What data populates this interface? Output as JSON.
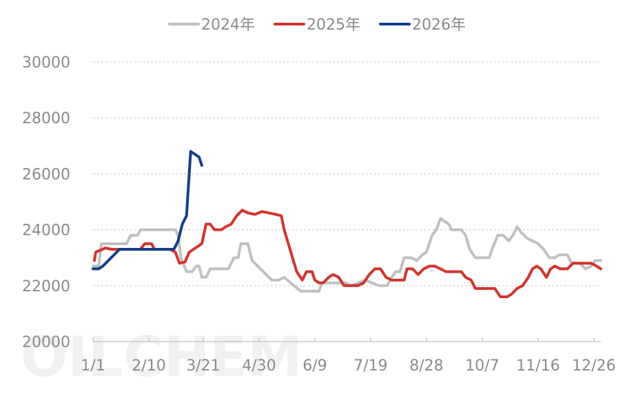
{
  "chart_data": {
    "type": "line",
    "watermark": "OILCHEM",
    "legend_position": "top-center",
    "grid": "horizontal-dashed",
    "ylim": [
      20000,
      30000
    ],
    "yticks": [
      "20000",
      "22000",
      "24000",
      "26000",
      "28000",
      "30000"
    ],
    "xticks": [
      "1/1",
      "2/10",
      "3/21",
      "4/30",
      "6/9",
      "7/19",
      "8/28",
      "10/7",
      "11/16",
      "12/26"
    ],
    "x_domain": [
      "1/1",
      "12/31"
    ],
    "series": [
      {
        "name": "2024年",
        "color": "#c0c0c0",
        "points": [
          [
            "1/1",
            22700
          ],
          [
            "1/5",
            22700
          ],
          [
            "1/7",
            23500
          ],
          [
            "1/15",
            23500
          ],
          [
            "1/25",
            23500
          ],
          [
            "1/28",
            23800
          ],
          [
            "2/2",
            23800
          ],
          [
            "2/4",
            24000
          ],
          [
            "2/20",
            24000
          ],
          [
            "3/1",
            24000
          ],
          [
            "3/3",
            23800
          ],
          [
            "3/5",
            23000
          ],
          [
            "3/9",
            22500
          ],
          [
            "3/13",
            22500
          ],
          [
            "3/16",
            22700
          ],
          [
            "3/18",
            22700
          ],
          [
            "3/20",
            22300
          ],
          [
            "3/23",
            22300
          ],
          [
            "3/26",
            22600
          ],
          [
            "3/31",
            22600
          ],
          [
            "4/8",
            22600
          ],
          [
            "4/12",
            23000
          ],
          [
            "4/15",
            23000
          ],
          [
            "4/17",
            23500
          ],
          [
            "4/22",
            23500
          ],
          [
            "4/25",
            22900
          ],
          [
            "4/29",
            22700
          ],
          [
            "5/5",
            22400
          ],
          [
            "5/9",
            22200
          ],
          [
            "5/14",
            22200
          ],
          [
            "5/18",
            22300
          ],
          [
            "5/25",
            22000
          ],
          [
            "5/30",
            21800
          ],
          [
            "6/10",
            21800
          ],
          [
            "6/12",
            21800
          ],
          [
            "6/14",
            22100
          ],
          [
            "6/20",
            22100
          ],
          [
            "7/1",
            22100
          ],
          [
            "7/5",
            22000
          ],
          [
            "7/10",
            22100
          ],
          [
            "7/15",
            22200
          ],
          [
            "7/20",
            22100
          ],
          [
            "7/25",
            22000
          ],
          [
            "7/31",
            22000
          ],
          [
            "8/3",
            22300
          ],
          [
            "8/6",
            22500
          ],
          [
            "8/9",
            22500
          ],
          [
            "8/12",
            23000
          ],
          [
            "8/17",
            23000
          ],
          [
            "8/21",
            22900
          ],
          [
            "8/25",
            23100
          ],
          [
            "8/28",
            23200
          ],
          [
            "9/1",
            23800
          ],
          [
            "9/4",
            24000
          ],
          [
            "9/7",
            24400
          ],
          [
            "9/10",
            24300
          ],
          [
            "9/13",
            24200
          ],
          [
            "9/15",
            24000
          ],
          [
            "9/22",
            24000
          ],
          [
            "9/25",
            23800
          ],
          [
            "9/28",
            23300
          ],
          [
            "10/2",
            23000
          ],
          [
            "10/12",
            23000
          ],
          [
            "10/14",
            23300
          ],
          [
            "10/18",
            23800
          ],
          [
            "10/22",
            23800
          ],
          [
            "10/26",
            23600
          ],
          [
            "10/29",
            23800
          ],
          [
            "11/1",
            24100
          ],
          [
            "11/4",
            23900
          ],
          [
            "11/8",
            23700
          ],
          [
            "11/12",
            23600
          ],
          [
            "11/16",
            23500
          ],
          [
            "11/20",
            23300
          ],
          [
            "11/24",
            23000
          ],
          [
            "11/28",
            23000
          ],
          [
            "12/1",
            23100
          ],
          [
            "12/7",
            23100
          ],
          [
            "12/10",
            22800
          ],
          [
            "12/16",
            22800
          ],
          [
            "12/20",
            22600
          ],
          [
            "12/24",
            22700
          ],
          [
            "12/27",
            22900
          ],
          [
            "12/31",
            22900
          ]
        ]
      },
      {
        "name": "2025年",
        "color": "#d0342c",
        "points": [
          [
            "1/2",
            22900
          ],
          [
            "1/3",
            23200
          ],
          [
            "1/10",
            23350
          ],
          [
            "1/14",
            23300
          ],
          [
            "1/20",
            23300
          ],
          [
            "1/27",
            23300
          ],
          [
            "2/4",
            23300
          ],
          [
            "2/7",
            23500
          ],
          [
            "2/12",
            23500
          ],
          [
            "2/14",
            23300
          ],
          [
            "2/25",
            23300
          ],
          [
            "3/1",
            23200
          ],
          [
            "3/4",
            22800
          ],
          [
            "3/8",
            22850
          ],
          [
            "3/11",
            23200
          ],
          [
            "3/14",
            23300
          ],
          [
            "3/17",
            23400
          ],
          [
            "3/20",
            23500
          ],
          [
            "3/23",
            24200
          ],
          [
            "3/26",
            24200
          ],
          [
            "3/29",
            24000
          ],
          [
            "4/3",
            24000
          ],
          [
            "4/6",
            24100
          ],
          [
            "4/10",
            24200
          ],
          [
            "4/14",
            24500
          ],
          [
            "4/18",
            24700
          ],
          [
            "4/22",
            24600
          ],
          [
            "4/27",
            24550
          ],
          [
            "5/2",
            24650
          ],
          [
            "5/7",
            24600
          ],
          [
            "5/12",
            24550
          ],
          [
            "5/16",
            24500
          ],
          [
            "5/18",
            24000
          ],
          [
            "5/21",
            23500
          ],
          [
            "5/24",
            23000
          ],
          [
            "5/27",
            22500
          ],
          [
            "5/31",
            22200
          ],
          [
            "6/3",
            22500
          ],
          [
            "6/7",
            22500
          ],
          [
            "6/9",
            22200
          ],
          [
            "6/12",
            22100
          ],
          [
            "6/15",
            22100
          ],
          [
            "6/19",
            22300
          ],
          [
            "6/22",
            22400
          ],
          [
            "6/26",
            22300
          ],
          [
            "6/30",
            22000
          ],
          [
            "7/5",
            22000
          ],
          [
            "7/10",
            22000
          ],
          [
            "7/14",
            22100
          ],
          [
            "7/18",
            22400
          ],
          [
            "7/22",
            22600
          ],
          [
            "7/26",
            22600
          ],
          [
            "7/30",
            22300
          ],
          [
            "8/3",
            22200
          ],
          [
            "8/7",
            22200
          ],
          [
            "8/12",
            22200
          ],
          [
            "8/14",
            22600
          ],
          [
            "8/18",
            22600
          ],
          [
            "8/22",
            22400
          ],
          [
            "8/26",
            22600
          ],
          [
            "8/30",
            22700
          ],
          [
            "9/3",
            22700
          ],
          [
            "9/7",
            22600
          ],
          [
            "9/11",
            22500
          ],
          [
            "9/17",
            22500
          ],
          [
            "9/22",
            22500
          ],
          [
            "9/25",
            22300
          ],
          [
            "9/29",
            22200
          ],
          [
            "10/2",
            21900
          ],
          [
            "10/6",
            21900
          ],
          [
            "10/12",
            21900
          ],
          [
            "10/16",
            21900
          ],
          [
            "10/20",
            21600
          ],
          [
            "10/25",
            21600
          ],
          [
            "10/28",
            21700
          ],
          [
            "11/1",
            21900
          ],
          [
            "11/5",
            22000
          ],
          [
            "11/9",
            22300
          ],
          [
            "11/12",
            22600
          ],
          [
            "11/15",
            22700
          ],
          [
            "11/18",
            22600
          ],
          [
            "11/22",
            22300
          ],
          [
            "11/25",
            22600
          ],
          [
            "11/28",
            22700
          ],
          [
            "12/2",
            22600
          ],
          [
            "12/7",
            22600
          ],
          [
            "12/11",
            22800
          ],
          [
            "12/16",
            22800
          ],
          [
            "12/20",
            22800
          ],
          [
            "12/24",
            22800
          ],
          [
            "12/28",
            22700
          ],
          [
            "12/31",
            22600
          ]
        ]
      },
      {
        "name": "2026年",
        "color": "#153d8a",
        "points": [
          [
            "1/1",
            22600
          ],
          [
            "1/5",
            22600
          ],
          [
            "1/8",
            22700
          ],
          [
            "1/12",
            22900
          ],
          [
            "1/16",
            23100
          ],
          [
            "1/20",
            23300
          ],
          [
            "1/25",
            23300
          ],
          [
            "2/1",
            23300
          ],
          [
            "2/10",
            23300
          ],
          [
            "2/20",
            23300
          ],
          [
            "2/28",
            23300
          ],
          [
            "3/3",
            23600
          ],
          [
            "3/6",
            24200
          ],
          [
            "3/9",
            24500
          ],
          [
            "3/12",
            26800
          ],
          [
            "3/15",
            26700
          ],
          [
            "3/18",
            26600
          ],
          [
            "3/20",
            26300
          ]
        ]
      }
    ]
  }
}
